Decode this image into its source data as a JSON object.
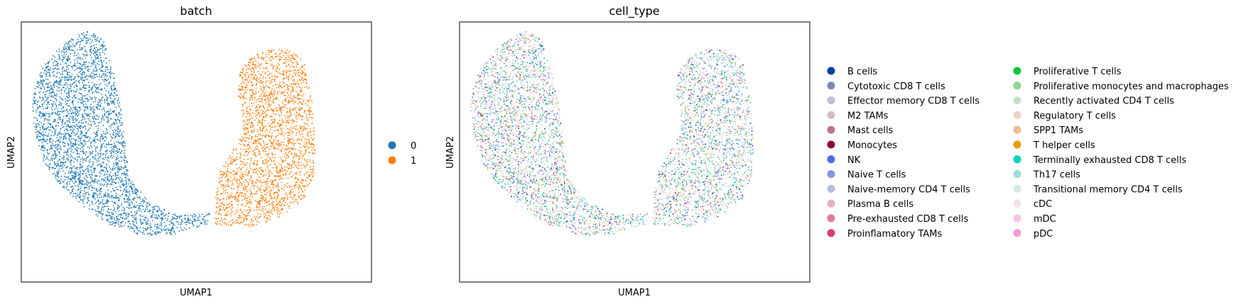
{
  "panels": [
    {
      "title": "batch",
      "xlabel": "UMAP1",
      "ylabel": "UMAP2",
      "legend": [
        {
          "label": "0",
          "color": "#1f77b4"
        },
        {
          "label": "1",
          "color": "#ff7f0e"
        }
      ]
    },
    {
      "title": "cell_type",
      "xlabel": "UMAP1",
      "ylabel": "UMAP2",
      "legend": [
        {
          "label": "B cells",
          "color": "#023fa5"
        },
        {
          "label": "Cytotoxic CD8 T cells",
          "color": "#7d87b9"
        },
        {
          "label": "Effector memory CD8 T cells",
          "color": "#bec1d4"
        },
        {
          "label": "M2 TAMs",
          "color": "#d6bcc0"
        },
        {
          "label": "Mast cells",
          "color": "#bb7784"
        },
        {
          "label": "Monocytes",
          "color": "#8e063b"
        },
        {
          "label": "NK",
          "color": "#4a6fe3"
        },
        {
          "label": "Naive T cells",
          "color": "#8595e1"
        },
        {
          "label": "Naive-memory CD4 T cells",
          "color": "#b5bbe3"
        },
        {
          "label": "Plasma B cells",
          "color": "#e6afb9"
        },
        {
          "label": "Pre-exhausted CD8 T cells",
          "color": "#e07b91"
        },
        {
          "label": "Proinflamatory TAMs",
          "color": "#d33f6a"
        },
        {
          "label": "Proliferative T cells",
          "color": "#11c638"
        },
        {
          "label": "Proliferative monocytes and macrophages",
          "color": "#8dd593"
        },
        {
          "label": "Recently activated CD4 T cells",
          "color": "#c6dec7"
        },
        {
          "label": "Regulatory T cells",
          "color": "#ead3c6"
        },
        {
          "label": "SPP1 TAMs",
          "color": "#f0b98d"
        },
        {
          "label": "T helper cells",
          "color": "#ef9708"
        },
        {
          "label": "Terminally exhausted CD8 T cells",
          "color": "#0fcfc0"
        },
        {
          "label": "Th17 cells",
          "color": "#9cded6"
        },
        {
          "label": "Transitional memory CD4 T cells",
          "color": "#d5eae7"
        },
        {
          "label": "cDC",
          "color": "#f3e1eb"
        },
        {
          "label": "mDC",
          "color": "#f6c4e1"
        },
        {
          "label": "pDC",
          "color": "#f79cd4"
        }
      ]
    }
  ],
  "chart_data": [
    {
      "type": "scatter",
      "title": "batch",
      "xlabel": "UMAP1",
      "ylabel": "UMAP2",
      "ticks": "none",
      "grid": false,
      "legend_position": "right",
      "series": [
        {
          "name": "0",
          "color": "#1f77b4",
          "region": "left crescent"
        },
        {
          "name": "1",
          "color": "#ff7f0e",
          "region": "right lobe"
        }
      ]
    },
    {
      "type": "scatter",
      "title": "cell_type",
      "xlabel": "UMAP1",
      "ylabel": "UMAP2",
      "ticks": "none",
      "grid": false,
      "legend_position": "right",
      "series_names": [
        "B cells",
        "Cytotoxic CD8 T cells",
        "Effector memory CD8 T cells",
        "M2 TAMs",
        "Mast cells",
        "Monocytes",
        "NK",
        "Naive T cells",
        "Naive-memory CD4 T cells",
        "Plasma B cells",
        "Pre-exhausted CD8 T cells",
        "Proinflamatory TAMs",
        "Proliferative T cells",
        "Proliferative monocytes and macrophages",
        "Recently activated CD4 T cells",
        "Regulatory T cells",
        "SPP1 TAMs",
        "T helper cells",
        "Terminally exhausted CD8 T cells",
        "Th17 cells",
        "Transitional memory CD4 T cells",
        "cDC",
        "mDC",
        "pDC"
      ]
    }
  ]
}
